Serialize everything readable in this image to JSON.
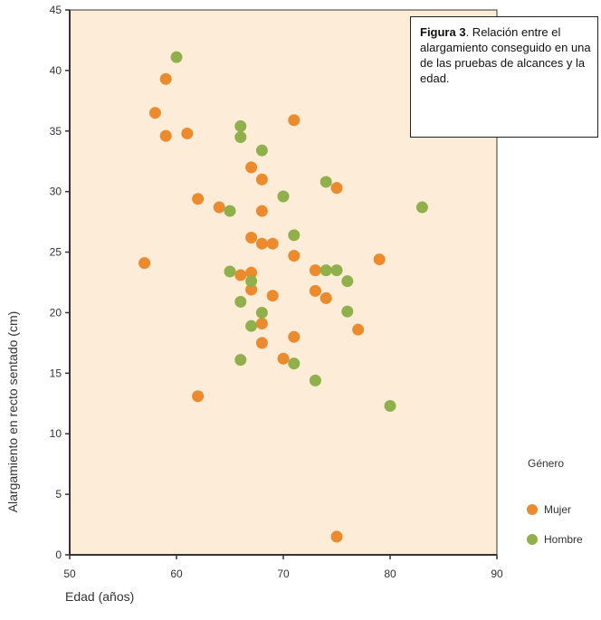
{
  "caption": {
    "label": "Figura 3",
    "text": ". Relación entre el alargamiento conseguido en una de las pruebas de alcances y la edad."
  },
  "colors": {
    "plot_background": "#fdecd8",
    "mujer": "#ec8a2e",
    "hombre": "#8fb04a",
    "axis": "#333333"
  },
  "chart_data": {
    "type": "scatter",
    "title": "",
    "xlabel": "Edad (años)",
    "ylabel": "Alargamiento en recto sentado (cm)",
    "xlim": [
      50,
      90
    ],
    "ylim": [
      0,
      45
    ],
    "x_ticks": [
      "50",
      "60",
      "70",
      "80",
      "90"
    ],
    "y_ticks": [
      "0",
      "5",
      "10",
      "15",
      "20",
      "25",
      "30",
      "35",
      "40",
      "45"
    ],
    "legend": {
      "title": "Género",
      "position": "right"
    },
    "series": [
      {
        "name": "Mujer",
        "color": "#ec8a2e",
        "points": [
          [
            57,
            24.1
          ],
          [
            58,
            36.5
          ],
          [
            59,
            39.3
          ],
          [
            59,
            34.6
          ],
          [
            61,
            34.8
          ],
          [
            62,
            29.4
          ],
          [
            62,
            13.1
          ],
          [
            64,
            28.7
          ],
          [
            66,
            23.1
          ],
          [
            67,
            32
          ],
          [
            67,
            26.2
          ],
          [
            67,
            23.3
          ],
          [
            67,
            21.9
          ],
          [
            68,
            31
          ],
          [
            68,
            28.4
          ],
          [
            68,
            25.7
          ],
          [
            68,
            19.1
          ],
          [
            68,
            17.5
          ],
          [
            69,
            25.7
          ],
          [
            69,
            21.4
          ],
          [
            70,
            16.2
          ],
          [
            71,
            35.9
          ],
          [
            71,
            24.7
          ],
          [
            71,
            18
          ],
          [
            73,
            23.5
          ],
          [
            73,
            21.8
          ],
          [
            74,
            21.2
          ],
          [
            75,
            30.3
          ],
          [
            75,
            1.5
          ],
          [
            77,
            18.6
          ],
          [
            79,
            24.4
          ]
        ]
      },
      {
        "name": "Hombre",
        "color": "#8fb04a",
        "points": [
          [
            60,
            41.1
          ],
          [
            65,
            28.4
          ],
          [
            65,
            23.4
          ],
          [
            66,
            35.4
          ],
          [
            66,
            34.5
          ],
          [
            66,
            20.9
          ],
          [
            66,
            16.1
          ],
          [
            67,
            22.6
          ],
          [
            67,
            18.9
          ],
          [
            68,
            33.4
          ],
          [
            68,
            20
          ],
          [
            70,
            29.6
          ],
          [
            71,
            26.4
          ],
          [
            71,
            15.8
          ],
          [
            73,
            14.4
          ],
          [
            74,
            30.8
          ],
          [
            74,
            23.5
          ],
          [
            75,
            23.5
          ],
          [
            76,
            22.6
          ],
          [
            76,
            20.1
          ],
          [
            80,
            12.3
          ],
          [
            83,
            28.7
          ]
        ]
      }
    ]
  }
}
